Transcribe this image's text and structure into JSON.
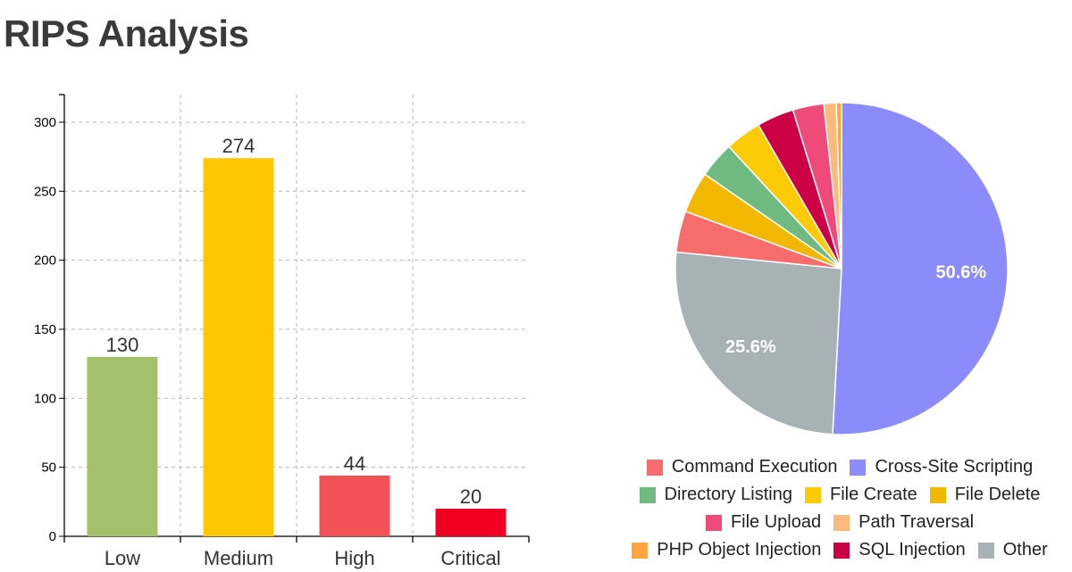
{
  "page": {
    "title": "RIPS Analysis"
  },
  "chart_data": [
    {
      "type": "bar",
      "categories": [
        "Low",
        "Medium",
        "High",
        "Critical"
      ],
      "values": [
        130,
        274,
        44,
        20
      ],
      "value_labels": [
        "130",
        "274",
        "44",
        "20"
      ],
      "colors": [
        "#a3c16a",
        "#fdc800",
        "#f05256",
        "#f20022"
      ],
      "ylim": [
        0,
        320
      ],
      "yticks": [
        0,
        50,
        100,
        150,
        200,
        250,
        300
      ],
      "ytick_labels": [
        "0",
        "50",
        "100",
        "150",
        "200",
        "250",
        "300"
      ],
      "grid": true,
      "grid_style": "dashed"
    },
    {
      "type": "pie",
      "slices": [
        {
          "label": "Cross-Site Scripting",
          "value": 50.6,
          "color": "#8b8bfb",
          "value_label": "50.6%"
        },
        {
          "label": "Other",
          "value": 25.6,
          "color": "#a6b2b3",
          "value_label": "25.6%"
        },
        {
          "label": "Command Execution",
          "value": 4.0,
          "color": "#f76c6c",
          "value_label": ""
        },
        {
          "label": "File Delete",
          "value": 4.0,
          "color": "#f2b800",
          "value_label": ""
        },
        {
          "label": "Directory Listing",
          "value": 3.5,
          "color": "#6fba80",
          "value_label": ""
        },
        {
          "label": "File Create",
          "value": 3.5,
          "color": "#fccb05",
          "value_label": ""
        },
        {
          "label": "SQL Injection",
          "value": 3.6,
          "color": "#cc0044",
          "value_label": ""
        },
        {
          "label": "File Upload",
          "value": 3.0,
          "color": "#ee4b7b",
          "value_label": ""
        },
        {
          "label": "Path Traversal",
          "value": 1.2,
          "color": "#f9ba7a",
          "value_label": ""
        },
        {
          "label": "PHP Object Injection",
          "value": 0.5,
          "color": "#ffa53f",
          "value_label": ""
        }
      ],
      "legend": {
        "placement": "bottom",
        "rows": [
          [
            {
              "label": "Command Execution",
              "color": "#f76c6c"
            },
            {
              "label": "Cross-Site Scripting",
              "color": "#8b8bfb"
            }
          ],
          [
            {
              "label": "Directory Listing",
              "color": "#6fba80"
            },
            {
              "label": "File Create",
              "color": "#fccb05"
            },
            {
              "label": "File Delete",
              "color": "#f2b800"
            }
          ],
          [
            {
              "label": "File Upload",
              "color": "#ee4b7b"
            },
            {
              "label": "Path Traversal",
              "color": "#f9ba7a"
            }
          ],
          [
            {
              "label": "PHP Object Injection",
              "color": "#ffa53f"
            },
            {
              "label": "SQL Injection",
              "color": "#cc0044"
            },
            {
              "label": "Other",
              "color": "#a6b2b3"
            }
          ]
        ]
      }
    }
  ]
}
